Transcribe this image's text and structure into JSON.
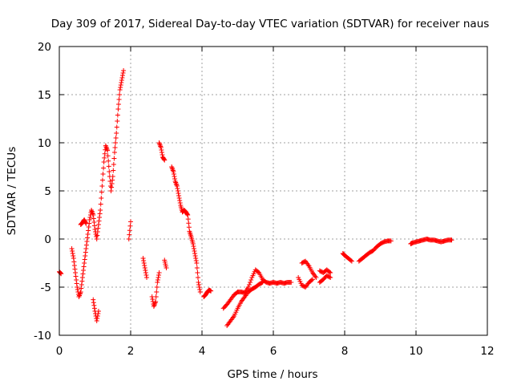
{
  "chart_data": {
    "type": "scatter",
    "title": "Day 309 of 2017, Sidereal Day-to-day VTEC variation (SDTVAR) for receiver naus",
    "xlabel": "GPS time / hours",
    "ylabel": "SDTVAR / TECUs",
    "xlim": [
      0,
      12
    ],
    "ylim": [
      -10,
      20
    ],
    "xticks": [
      0,
      2,
      4,
      6,
      8,
      10,
      12
    ],
    "yticks": [
      -10,
      -5,
      0,
      5,
      10,
      15,
      20
    ],
    "xtick_labels": [
      "0",
      "2",
      "4",
      "6",
      "8",
      "10",
      "12"
    ],
    "ytick_labels": [
      "-10",
      "-5",
      "0",
      "5",
      "10",
      "15",
      "20"
    ],
    "grid": true,
    "marker": "+",
    "marker_color": "#ff0000",
    "series": [
      {
        "name": "SDTVAR",
        "segments": [
          [
            [
              0.0,
              -3.4
            ],
            [
              0.05,
              -3.6
            ]
          ],
          [
            [
              0.35,
              -1.0
            ],
            [
              0.4,
              -2.0
            ],
            [
              0.45,
              -3.5
            ],
            [
              0.5,
              -5.0
            ],
            [
              0.55,
              -6.0
            ],
            [
              0.6,
              -5.5
            ],
            [
              0.65,
              -4.0
            ],
            [
              0.7,
              -2.5
            ],
            [
              0.75,
              -1.0
            ],
            [
              0.8,
              0.5
            ],
            [
              0.85,
              2.0
            ],
            [
              0.9,
              3.0
            ],
            [
              0.95,
              2.5
            ],
            [
              1.0,
              1.0
            ],
            [
              1.05,
              0.0
            ],
            [
              1.1,
              1.5
            ],
            [
              1.15,
              3.0
            ],
            [
              1.2,
              5.5
            ],
            [
              1.25,
              8.0
            ],
            [
              1.3,
              9.7
            ],
            [
              1.35,
              9.2
            ],
            [
              1.4,
              7.0
            ],
            [
              1.45,
              5.0
            ],
            [
              1.5,
              6.5
            ],
            [
              1.55,
              9.0
            ],
            [
              1.6,
              11.0
            ],
            [
              1.65,
              13.5
            ],
            [
              1.7,
              15.5
            ],
            [
              1.75,
              16.5
            ],
            [
              1.8,
              17.5
            ]
          ],
          [
            [
              0.6,
              1.5
            ],
            [
              0.65,
              1.7
            ],
            [
              0.7,
              2.0
            ],
            [
              0.75,
              1.6
            ]
          ],
          [
            [
              0.95,
              -6.3
            ],
            [
              1.0,
              -7.5
            ],
            [
              1.05,
              -8.5
            ],
            [
              1.1,
              -7.5
            ]
          ],
          [
            [
              1.95,
              0.0
            ],
            [
              2.0,
              1.8
            ]
          ],
          [
            [
              2.35,
              -2.0
            ],
            [
              2.4,
              -3.0
            ],
            [
              2.45,
              -4.0
            ]
          ],
          [
            [
              2.6,
              -6.0
            ],
            [
              2.65,
              -7.0
            ],
            [
              2.7,
              -6.5
            ],
            [
              2.75,
              -4.5
            ],
            [
              2.8,
              -3.5
            ]
          ],
          [
            [
              2.8,
              10.0
            ],
            [
              2.85,
              9.5
            ],
            [
              2.9,
              8.5
            ],
            [
              2.95,
              8.2
            ]
          ],
          [
            [
              2.95,
              -2.2
            ],
            [
              3.0,
              -3.0
            ]
          ],
          [
            [
              3.15,
              7.5
            ],
            [
              3.2,
              7.0
            ],
            [
              3.25,
              6.0
            ],
            [
              3.3,
              5.5
            ],
            [
              3.35,
              4.5
            ],
            [
              3.4,
              3.5
            ],
            [
              3.45,
              2.8
            ],
            [
              3.5,
              3.0
            ],
            [
              3.55,
              2.8
            ],
            [
              3.6,
              2.5
            ],
            [
              3.65,
              0.8
            ],
            [
              3.7,
              0.2
            ],
            [
              3.75,
              -0.5
            ],
            [
              3.8,
              -1.5
            ],
            [
              3.85,
              -2.5
            ],
            [
              3.9,
              -4.5
            ],
            [
              3.95,
              -5.5
            ]
          ],
          [
            [
              4.05,
              -6.0
            ],
            [
              4.1,
              -5.8
            ],
            [
              4.15,
              -5.5
            ],
            [
              4.2,
              -5.3
            ],
            [
              4.25,
              -5.4
            ]
          ],
          [
            [
              4.6,
              -7.2
            ],
            [
              4.7,
              -6.8
            ],
            [
              4.8,
              -6.3
            ],
            [
              4.9,
              -5.8
            ],
            [
              5.0,
              -5.5
            ],
            [
              5.1,
              -5.5
            ],
            [
              5.2,
              -5.6
            ],
            [
              5.3,
              -5.0
            ],
            [
              5.4,
              -4.0
            ],
            [
              5.5,
              -3.2
            ],
            [
              5.6,
              -3.5
            ],
            [
              5.7,
              -4.2
            ],
            [
              5.8,
              -4.5
            ],
            [
              5.9,
              -4.6
            ],
            [
              6.0,
              -4.5
            ],
            [
              6.1,
              -4.6
            ],
            [
              6.2,
              -4.5
            ],
            [
              6.3,
              -4.6
            ],
            [
              6.4,
              -4.5
            ],
            [
              6.5,
              -4.5
            ]
          ],
          [
            [
              4.7,
              -9.0
            ],
            [
              4.8,
              -8.5
            ],
            [
              4.9,
              -8.0
            ],
            [
              5.0,
              -7.2
            ],
            [
              5.1,
              -6.5
            ],
            [
              5.2,
              -6.0
            ],
            [
              5.3,
              -5.5
            ],
            [
              5.4,
              -5.2
            ],
            [
              5.5,
              -5.0
            ],
            [
              5.6,
              -4.7
            ],
            [
              5.7,
              -4.5
            ]
          ],
          [
            [
              6.7,
              -4.0
            ],
            [
              6.8,
              -4.8
            ],
            [
              6.9,
              -5.0
            ],
            [
              7.0,
              -4.5
            ],
            [
              7.1,
              -4.2
            ]
          ],
          [
            [
              6.8,
              -2.5
            ],
            [
              6.9,
              -2.3
            ],
            [
              7.0,
              -2.8
            ],
            [
              7.1,
              -3.5
            ],
            [
              7.2,
              -4.0
            ]
          ],
          [
            [
              7.3,
              -3.3
            ],
            [
              7.4,
              -3.5
            ],
            [
              7.5,
              -3.2
            ],
            [
              7.6,
              -3.5
            ]
          ],
          [
            [
              7.3,
              -4.5
            ],
            [
              7.4,
              -4.2
            ],
            [
              7.5,
              -3.8
            ],
            [
              7.6,
              -4.0
            ]
          ],
          [
            [
              7.95,
              -1.5
            ],
            [
              8.0,
              -1.7
            ],
            [
              8.1,
              -2.0
            ],
            [
              8.2,
              -2.3
            ]
          ],
          [
            [
              8.4,
              -2.3
            ],
            [
              8.5,
              -2.0
            ],
            [
              8.6,
              -1.7
            ],
            [
              8.7,
              -1.4
            ],
            [
              8.8,
              -1.2
            ],
            [
              8.9,
              -0.8
            ],
            [
              9.0,
              -0.5
            ],
            [
              9.1,
              -0.3
            ],
            [
              9.2,
              -0.2
            ],
            [
              9.3,
              -0.2
            ]
          ],
          [
            [
              9.85,
              -0.5
            ],
            [
              9.9,
              -0.4
            ],
            [
              10.0,
              -0.3
            ],
            [
              10.1,
              -0.2
            ],
            [
              10.2,
              -0.1
            ],
            [
              10.3,
              0.0
            ],
            [
              10.4,
              -0.1
            ],
            [
              10.5,
              -0.1
            ],
            [
              10.6,
              -0.2
            ],
            [
              10.7,
              -0.3
            ],
            [
              10.8,
              -0.2
            ],
            [
              10.9,
              -0.1
            ],
            [
              11.0,
              -0.1
            ]
          ]
        ]
      }
    ]
  }
}
